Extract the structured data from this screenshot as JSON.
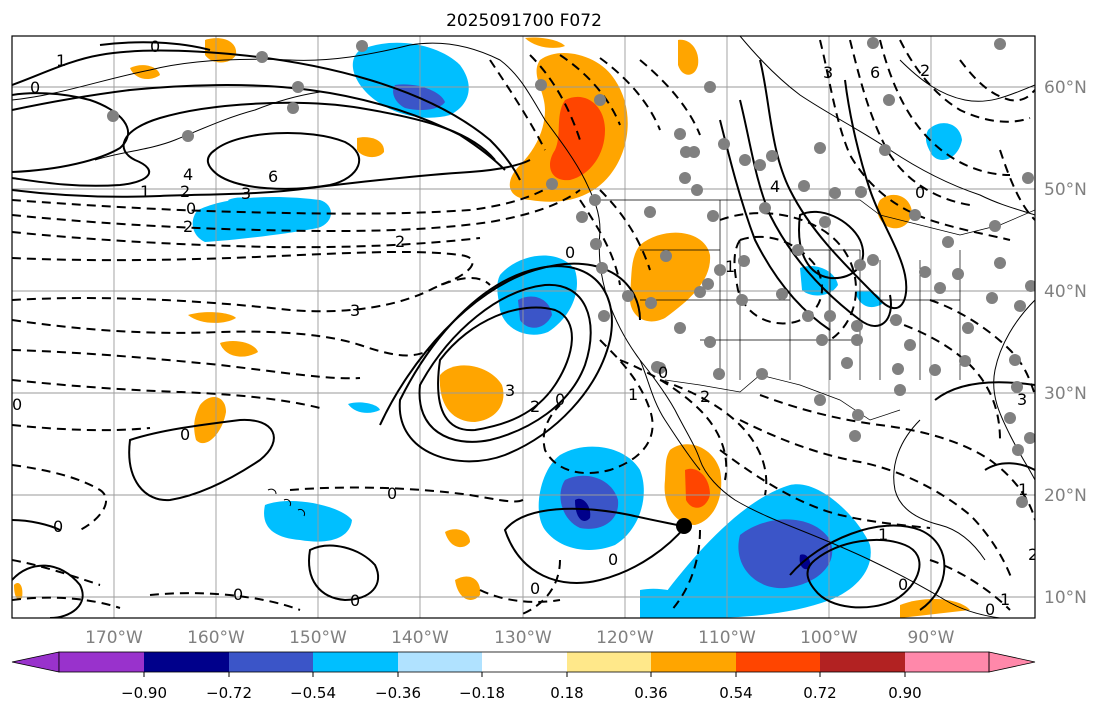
{
  "title": "2025091700 F072",
  "longitude_labels": [
    "170°W",
    "160°W",
    "150°W",
    "140°W",
    "130°W",
    "120°W",
    "110°W",
    "100°W",
    "90°W"
  ],
  "latitude_labels": [
    "60°N",
    "50°N",
    "40°N",
    "30°N",
    "20°N",
    "10°N"
  ],
  "colorbar": {
    "tick_labels": [
      "−0.90",
      "−0.72",
      "−0.54",
      "−0.36",
      "−0.18",
      "0.18",
      "0.36",
      "0.54",
      "0.72",
      "0.90"
    ],
    "colors": [
      "#9932cc",
      "#00008b",
      "#3b55c8",
      "#00bfff",
      "#b0e2ff",
      "#ffffff",
      "#ffe88a",
      "#ffa500",
      "#ff4500",
      "#b22222",
      "#ff88aa"
    ]
  },
  "contour_labels": [
    {
      "id": "c1",
      "text": "1"
    },
    {
      "id": "c2",
      "text": "0"
    },
    {
      "id": "c3",
      "text": "0"
    },
    {
      "id": "c4",
      "text": "4"
    },
    {
      "id": "c5",
      "text": "6"
    },
    {
      "id": "c6",
      "text": "1"
    },
    {
      "id": "c7",
      "text": "2"
    },
    {
      "id": "c8",
      "text": "3"
    },
    {
      "id": "c9",
      "text": "0"
    },
    {
      "id": "c10",
      "text": "2"
    },
    {
      "id": "c11",
      "text": "2"
    },
    {
      "id": "c12",
      "text": "3"
    },
    {
      "id": "c13",
      "text": "0"
    },
    {
      "id": "c14",
      "text": "0"
    },
    {
      "id": "c15",
      "text": "0"
    },
    {
      "id": "c16",
      "text": "0"
    },
    {
      "id": "c17",
      "text": "0"
    },
    {
      "id": "c18",
      "text": "3"
    },
    {
      "id": "c19",
      "text": "2"
    },
    {
      "id": "c20",
      "text": "0"
    },
    {
      "id": "c21",
      "text": "0"
    },
    {
      "id": "c22",
      "text": "1"
    },
    {
      "id": "c23",
      "text": "2"
    },
    {
      "id": "c24",
      "text": "0"
    },
    {
      "id": "c25",
      "text": "0"
    },
    {
      "id": "c26",
      "text": "0"
    },
    {
      "id": "c27",
      "text": "1"
    },
    {
      "id": "c28",
      "text": "0"
    },
    {
      "id": "c29",
      "text": "0"
    },
    {
      "id": "c30",
      "text": "3"
    },
    {
      "id": "c31",
      "text": "6"
    },
    {
      "id": "c32",
      "text": "2"
    },
    {
      "id": "c33",
      "text": "4"
    },
    {
      "id": "c34",
      "text": "0"
    },
    {
      "id": "c35",
      "text": "1"
    },
    {
      "id": "c36",
      "text": "1"
    },
    {
      "id": "c37",
      "text": "3"
    },
    {
      "id": "c38",
      "text": "2"
    },
    {
      "id": "c39",
      "text": "1"
    },
    {
      "id": "c40",
      "text": "0"
    }
  ]
}
